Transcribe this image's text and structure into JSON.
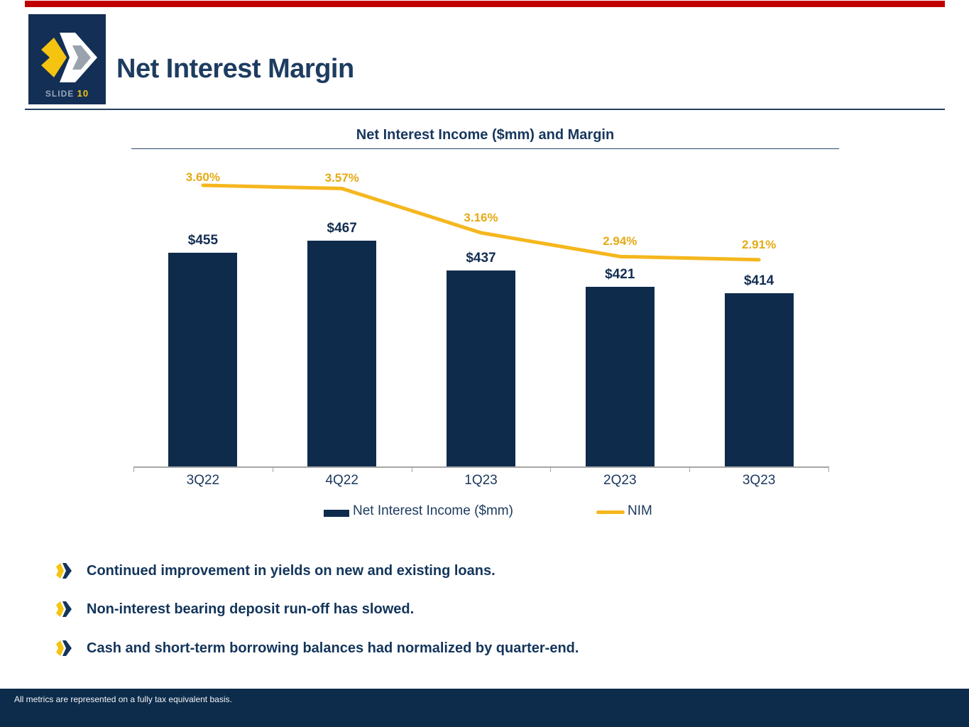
{
  "slide": {
    "badge_label": "SLIDE",
    "badge_number": "10",
    "title": "Net Interest Margin",
    "footer": "All metrics are represented on a fully tax equivalent basis."
  },
  "chart_data": {
    "type": "bar+line",
    "title": "Net Interest Income ($mm) and Margin",
    "categories": [
      "3Q22",
      "4Q22",
      "1Q23",
      "2Q23",
      "3Q23"
    ],
    "series": [
      {
        "name": "Net Interest Income ($mm)",
        "type": "bar",
        "values": [
          455,
          467,
          437,
          421,
          414
        ],
        "labels": [
          "$455",
          "$467",
          "$437",
          "$421",
          "$414"
        ],
        "color": "#0e2b4b"
      },
      {
        "name": "NIM",
        "type": "line",
        "values": [
          3.6,
          3.57,
          3.16,
          2.94,
          2.91
        ],
        "labels": [
          "3.60%",
          "3.57%",
          "3.16%",
          "2.94%",
          "2.91%"
        ],
        "color": "#f5b71e"
      }
    ],
    "legend_position": "bottom",
    "grid": false,
    "bar_axis_implied_min": 240,
    "line_axis_unit": "%"
  },
  "bullets": [
    {
      "text": "Continued improvement in yields on new and existing loans."
    },
    {
      "text": "Non-interest bearing deposit run-off has slowed."
    },
    {
      "text": "Cash and short-term borrowing balances had normalized by quarter-end."
    }
  ],
  "colors": {
    "navy": "#0e2b4b",
    "navy_text": "#1d3c60",
    "gold": "#f5b71e",
    "gold_text": "#e5aa14",
    "accent_red": "#c00000",
    "footer_bg": "#0d2c4b",
    "axis_gray": "#a6a6a6"
  }
}
